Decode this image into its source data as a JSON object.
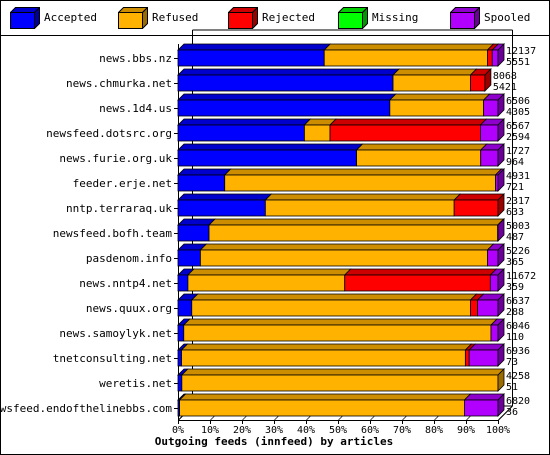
{
  "legend": [
    {
      "label": "Accepted",
      "color": "#0000ff"
    },
    {
      "label": "Refused",
      "color": "#ffb200"
    },
    {
      "label": "Rejected",
      "color": "#ff0000"
    },
    {
      "label": "Missing",
      "color": "#00ff00"
    },
    {
      "label": "Spooled",
      "color": "#b200ff"
    }
  ],
  "chart_data": {
    "type": "bar",
    "orientation": "horizontal",
    "stacked": true,
    "normalized_percent": true,
    "xlabel": "Outgoing feeds (innfeed) by articles",
    "xlim": [
      0,
      100
    ],
    "xticks": [
      "0%",
      "10%",
      "20%",
      "30%",
      "40%",
      "50%",
      "60%",
      "70%",
      "80%",
      "90%",
      "100%"
    ],
    "categories": [
      "news.bbs.nz",
      "news.chmurka.net",
      "news.1d4.us",
      "newsfeed.dotsrc.org",
      "news.furie.org.uk",
      "feeder.erje.net",
      "nntp.terraraq.uk",
      "newsfeed.bofh.team",
      "pasdenom.info",
      "news.nntp4.net",
      "news.quux.org",
      "news.samoylyk.net",
      "tnetconsulting.net",
      "weretis.net",
      "newsfeed.endofthelinebbs.com"
    ],
    "annotations": [
      [
        "12137",
        "5551"
      ],
      [
        "8068",
        "5421"
      ],
      [
        "6506",
        "4305"
      ],
      [
        "6567",
        "2594"
      ],
      [
        "1727",
        "964"
      ],
      [
        "4931",
        "721"
      ],
      [
        "2317",
        "633"
      ],
      [
        "5003",
        "487"
      ],
      [
        "5226",
        "365"
      ],
      [
        "11672",
        "359"
      ],
      [
        "6637",
        "288"
      ],
      [
        "6046",
        "110"
      ],
      [
        "6936",
        "73"
      ],
      [
        "4258",
        "51"
      ],
      [
        "6820",
        "36"
      ]
    ],
    "series": [
      {
        "name": "Accepted",
        "values": [
          45.7,
          67.2,
          66.2,
          39.5,
          55.8,
          14.6,
          27.3,
          9.7,
          7.0,
          3.1,
          4.3,
          1.8,
          1.1,
          1.2,
          0.5
        ]
      },
      {
        "name": "Refused",
        "values": [
          51.0,
          24.2,
          29.3,
          8.0,
          38.8,
          84.6,
          59.0,
          90.2,
          89.7,
          49.0,
          87.1,
          96.0,
          88.7,
          98.8,
          89.0
        ]
      },
      {
        "name": "Rejected",
        "values": [
          1.5,
          4.5,
          0,
          47.0,
          0,
          0,
          13.7,
          0,
          0,
          45.5,
          2.2,
          0,
          1.2,
          0,
          0
        ]
      },
      {
        "name": "Missing",
        "values": [
          0,
          0,
          0,
          0,
          0,
          0,
          0,
          0,
          0,
          0,
          0,
          0,
          0,
          0,
          0
        ]
      },
      {
        "name": "Spooled",
        "values": [
          1.8,
          0,
          4.5,
          5.5,
          5.4,
          0.8,
          0,
          0.1,
          3.3,
          2.4,
          6.4,
          2.2,
          9.0,
          0,
          10.5
        ]
      }
    ],
    "colors": {
      "border": "#000000",
      "background": "#ffffff"
    }
  }
}
